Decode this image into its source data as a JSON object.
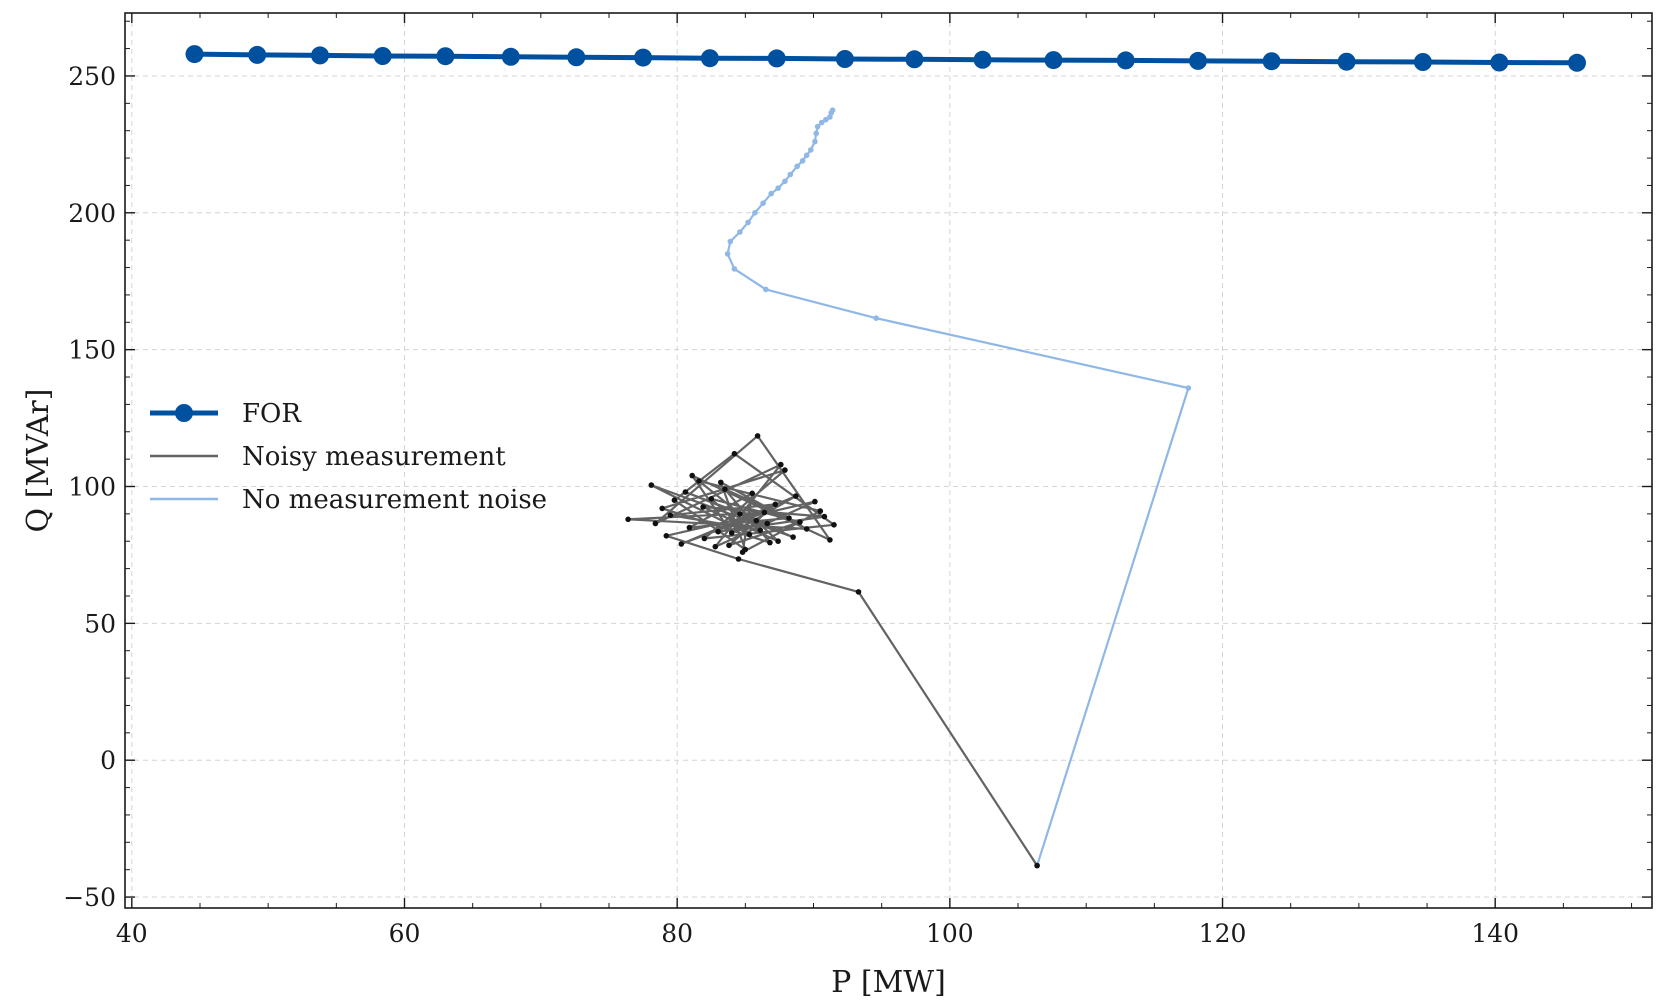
{
  "chart_data": {
    "type": "line",
    "title": "",
    "xlabel": "P [MW]",
    "ylabel": "Q [MVAr]",
    "xlim": [
      39.5,
      151.5
    ],
    "ylim": [
      -54,
      273
    ],
    "xticks": [
      40,
      60,
      80,
      100,
      120,
      140
    ],
    "yticks": [
      -50,
      0,
      50,
      100,
      150,
      200,
      250
    ],
    "grid": true,
    "legend_position": "center-left",
    "series": [
      {
        "name": "FOR",
        "color": "#0050a0",
        "marker": "large-circle",
        "x": [
          44.6,
          49.2,
          53.8,
          58.4,
          63.0,
          67.8,
          72.6,
          77.5,
          82.4,
          87.3,
          92.3,
          97.4,
          102.4,
          107.6,
          112.9,
          118.2,
          123.6,
          129.1,
          134.7,
          140.3,
          146.0
        ],
        "y": [
          258.0,
          257.7,
          257.5,
          257.3,
          257.2,
          257.0,
          256.8,
          256.7,
          256.5,
          256.4,
          256.2,
          256.1,
          255.9,
          255.8,
          255.7,
          255.5,
          255.4,
          255.2,
          255.1,
          254.9,
          254.8
        ]
      },
      {
        "name": "Noisy measurement",
        "color": "#636363",
        "marker": "small-dot",
        "x": [
          106.4,
          93.3,
          84.5,
          79.2,
          90.1,
          82.8,
          87.6,
          78.4,
          85.9,
          91.2,
          81.1,
          84.0,
          88.7,
          80.3,
          86.4,
          76.4,
          89.5,
          83.2,
          85.0,
          79.8,
          84.2,
          91.5,
          82.0,
          87.9,
          78.9,
          86.8,
          83.5,
          88.2,
          80.9,
          85.5,
          84.8,
          90.5,
          81.6,
          86.1,
          79.5,
          87.2,
          83.8,
          89.0,
          82.5,
          85.3,
          78.1,
          88.5,
          84.6,
          80.6,
          86.6,
          83.0,
          90.8,
          81.9,
          87.4,
          85.8
        ],
        "y": [
          -38.5,
          61.5,
          73.5,
          82.0,
          94.5,
          78.0,
          108.0,
          86.5,
          118.5,
          80.5,
          104.0,
          83.0,
          96.5,
          79.0,
          90.5,
          88.0,
          84.5,
          101.5,
          77.0,
          95.0,
          112.0,
          86.0,
          81.0,
          106.0,
          92.0,
          79.5,
          99.0,
          88.5,
          85.0,
          97.5,
          76.0,
          91.0,
          102.0,
          84.0,
          89.5,
          93.5,
          78.5,
          87.0,
          95.5,
          82.5,
          100.5,
          81.5,
          90.0,
          98.0,
          86.5,
          83.5,
          89.0,
          92.5,
          80.0,
          87.5
        ]
      },
      {
        "name": "No measurement noise",
        "color": "#8fb8e6",
        "marker": "small-dot",
        "x": [
          106.4,
          117.5,
          94.6,
          86.5,
          84.2,
          83.7,
          83.9,
          84.6,
          85.2,
          85.7,
          86.3,
          86.9,
          87.4,
          87.9,
          88.3,
          88.8,
          89.2,
          89.5,
          89.8,
          90.1,
          90.2,
          90.3,
          90.6,
          90.9,
          91.2,
          91.3,
          91.4
        ],
        "y": [
          -38.5,
          136.0,
          161.5,
          172.0,
          179.5,
          185.0,
          189.5,
          193.0,
          196.5,
          200.0,
          203.5,
          207.0,
          209.0,
          211.5,
          214.0,
          217.0,
          219.0,
          221.0,
          223.0,
          226.0,
          229.0,
          231.5,
          233.0,
          234.0,
          235.0,
          236.5,
          237.5
        ]
      }
    ]
  }
}
